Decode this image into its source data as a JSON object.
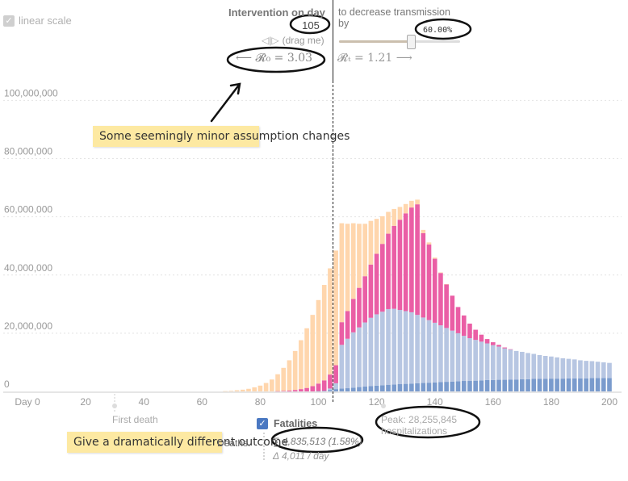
{
  "scale_toggle": {
    "label": "linear scale",
    "check": "✓"
  },
  "intervention": {
    "label": "Intervention on day",
    "day": "105",
    "drag_hint": "(drag me)",
    "r0_text": "⟵ 𝓡₀ = 3.03",
    "reduce_line1": "to decrease transmission",
    "reduce_line2": "by",
    "reduce_pct": "60.00%",
    "reduce_value": 0.6,
    "rt_text": "𝓡ₜ = 1.21 ⟶"
  },
  "annotations": {
    "note1": "Some seemingly minor assumption changes",
    "note2": "Give a dramatically different outcome"
  },
  "first_death_label": "First death",
  "fatalities": {
    "check": "✓",
    "label": "Fatalities",
    "deaths_label": "Deaths.",
    "total": "∑ 4,835,513 (1.58%)",
    "rate": "Δ  4,011 / day"
  },
  "peak": {
    "line1": "Peak: 28,255,845",
    "line2": "hospitalizations"
  },
  "colors": {
    "orange": "#ffd6ad",
    "magenta": "#ea5ea5",
    "lightblue": "#b7c6e2",
    "darkblue": "#7a9bcd",
    "accent": "#4a78c2"
  },
  "chart_data": {
    "type": "bar",
    "stacked": true,
    "x": [
      0,
      2,
      4,
      6,
      8,
      10,
      12,
      14,
      16,
      18,
      20,
      22,
      24,
      26,
      28,
      30,
      32,
      34,
      36,
      38,
      40,
      42,
      44,
      46,
      48,
      50,
      52,
      54,
      56,
      58,
      60,
      62,
      64,
      66,
      68,
      70,
      72,
      74,
      76,
      78,
      80,
      82,
      84,
      86,
      88,
      90,
      92,
      94,
      96,
      98,
      100,
      102,
      104,
      106,
      108,
      110,
      112,
      114,
      116,
      118,
      120,
      122,
      124,
      126,
      128,
      130,
      132,
      134,
      136,
      138,
      140,
      142,
      144,
      146,
      148,
      150,
      152,
      154,
      156,
      158,
      160,
      162,
      164,
      166,
      168,
      170,
      172,
      174,
      176,
      178,
      180,
      182,
      184,
      186,
      188,
      190,
      192,
      194,
      196,
      198,
      200
    ],
    "series": [
      {
        "color": "darkblue",
        "values": [
          0,
          0,
          0,
          0,
          0,
          0,
          0,
          0,
          0,
          0,
          0,
          0,
          0,
          0,
          0,
          0,
          0,
          0,
          0,
          0,
          0,
          0,
          0,
          0,
          0,
          0,
          0,
          0,
          0,
          0,
          0,
          0,
          0,
          0,
          0,
          0,
          0,
          0,
          0,
          0,
          0,
          0,
          0,
          0,
          0,
          0,
          0,
          0,
          0,
          0,
          0.1,
          0.2,
          0.5,
          0.8,
          1.0,
          1.1,
          1.3,
          1.5,
          1.7,
          1.8,
          2.0,
          2.1,
          2.3,
          2.4,
          2.5,
          2.6,
          2.7,
          2.8,
          2.9,
          3.0,
          3.1,
          3.2,
          3.3,
          3.4,
          3.5,
          3.6,
          3.6,
          3.7,
          3.8,
          3.9,
          3.9,
          4.0,
          4.0,
          4.1,
          4.1,
          4.2,
          4.2,
          4.3,
          4.3,
          4.3,
          4.4,
          4.4,
          4.4,
          4.5,
          4.5,
          4.5,
          4.5,
          4.6,
          4.6,
          4.6,
          4.6
        ]
      },
      {
        "color": "lightblue",
        "values": [
          0,
          0,
          0,
          0,
          0,
          0,
          0,
          0,
          0,
          0,
          0,
          0,
          0,
          0,
          0,
          0,
          0,
          0,
          0,
          0,
          0,
          0,
          0,
          0,
          0,
          0,
          0,
          0,
          0,
          0,
          0,
          0,
          0,
          0,
          0,
          0,
          0,
          0,
          0,
          0,
          0,
          0,
          0,
          0,
          0,
          0,
          0,
          0,
          0,
          0,
          0,
          0,
          0.5,
          2.0,
          15.0,
          17.0,
          19.0,
          20.5,
          22.0,
          23.5,
          24.5,
          25.3,
          26.0,
          26.0,
          25.5,
          25.0,
          24.5,
          23.5,
          22.5,
          21.5,
          20.5,
          19.5,
          18.5,
          17.5,
          16.5,
          15.5,
          14.7,
          14.0,
          13.3,
          12.6,
          12.0,
          11.4,
          10.8,
          10.3,
          9.8,
          9.4,
          9.0,
          8.6,
          8.2,
          7.9,
          7.6,
          7.3,
          7.0,
          6.7,
          6.5,
          6.2,
          6.0,
          5.8,
          5.6,
          5.4,
          5.2
        ]
      },
      {
        "color": "magenta",
        "values": [
          0,
          0,
          0,
          0,
          0,
          0,
          0,
          0,
          0,
          0,
          0,
          0,
          0,
          0,
          0,
          0,
          0,
          0,
          0,
          0,
          0,
          0,
          0,
          0,
          0,
          0,
          0,
          0,
          0,
          0,
          0,
          0,
          0,
          0,
          0,
          0,
          0,
          0,
          0,
          0,
          0,
          0,
          0,
          0.1,
          0.2,
          0.3,
          0.5,
          0.8,
          1.2,
          1.8,
          2.6,
          3.6,
          4.8,
          6.2,
          7.8,
          9.5,
          11.5,
          13.6,
          15.9,
          18.3,
          20.8,
          23.3,
          25.9,
          28.5,
          31.0,
          33.6,
          36.0,
          38.0,
          29.0,
          26.0,
          22.0,
          18.0,
          15.0,
          12.0,
          9.0,
          7.0,
          5.0,
          3.5,
          2.4,
          1.5,
          1.0,
          0.6,
          0.3,
          0.1,
          0,
          0,
          0,
          0,
          0,
          0,
          0,
          0,
          0,
          0,
          0,
          0,
          0,
          0,
          0,
          0,
          0
        ]
      },
      {
        "color": "orange",
        "values": [
          0,
          0,
          0,
          0,
          0,
          0,
          0,
          0,
          0,
          0,
          0,
          0,
          0,
          0,
          0,
          0,
          0,
          0,
          0,
          0,
          0,
          0,
          0,
          0,
          0,
          0,
          0,
          0,
          0,
          0,
          0,
          0,
          0,
          0,
          0.1,
          0.2,
          0.4,
          0.6,
          0.9,
          1.4,
          2.0,
          2.9,
          4.1,
          5.8,
          7.9,
          10.4,
          13.4,
          16.8,
          20.5,
          24.5,
          28.7,
          32.8,
          36.5,
          39.4,
          34.0,
          30.0,
          26.0,
          22.0,
          18.0,
          15.0,
          12.0,
          9.5,
          7.5,
          5.8,
          4.4,
          3.2,
          2.3,
          1.6,
          1.1,
          0.7,
          0.4,
          0.2,
          0.1,
          0,
          0,
          0,
          0,
          0,
          0,
          0,
          0,
          0,
          0,
          0,
          0,
          0,
          0,
          0,
          0,
          0,
          0,
          0,
          0,
          0,
          0,
          0,
          0,
          0,
          0,
          0,
          0
        ]
      }
    ],
    "value_unit": "millions",
    "x_ticks": [
      0,
      20,
      40,
      60,
      80,
      100,
      120,
      140,
      160,
      180,
      200
    ],
    "x_tick_labels": [
      "Day 0",
      "20",
      "40",
      "60",
      "80",
      "100",
      "120",
      "140",
      "160",
      "180",
      "200"
    ],
    "y_ticks": [
      0,
      20000000,
      40000000,
      60000000,
      80000000,
      100000000
    ],
    "y_tick_labels": [
      "0",
      "20,000,000",
      "40,000,000",
      "60,000,000",
      "80,000,000",
      "100,000,000"
    ],
    "xlim": [
      0,
      200
    ],
    "ylim": [
      0,
      104000000
    ],
    "intervention_day": 105,
    "grid": true
  }
}
